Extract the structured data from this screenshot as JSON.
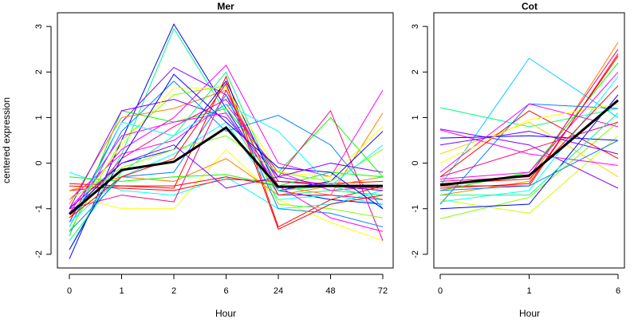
{
  "chart_data": [
    {
      "type": "line",
      "title": "Mer",
      "xlabel": "Hour",
      "ylabel": "centered expression",
      "x": [
        "0",
        "1",
        "2",
        "6",
        "24",
        "48",
        "72"
      ],
      "yticks": [
        -2,
        -1,
        0,
        1,
        2,
        3
      ],
      "ylim": [
        -2.3,
        3.3
      ],
      "grid": false,
      "mean": {
        "name": "mean",
        "color": "#000000",
        "values": [
          -1.12,
          -0.15,
          0.03,
          0.78,
          -0.52,
          -0.5,
          -0.5
        ]
      },
      "series": [
        {
          "color": "#0000ff",
          "values": [
            -2.1,
            0.5,
            3.05,
            1.2,
            -0.6,
            -0.8,
            -0.9
          ]
        },
        {
          "color": "#00ff80",
          "values": [
            -1.9,
            0.2,
            2.95,
            1.1,
            -0.7,
            -0.6,
            -0.7
          ]
        },
        {
          "color": "#8000ff",
          "values": [
            -1.3,
            0.9,
            2.1,
            1.5,
            -0.4,
            -0.5,
            -0.6
          ]
        },
        {
          "color": "#ff00ff",
          "values": [
            -1.0,
            0.3,
            1.0,
            2.15,
            0.0,
            -0.3,
            1.6
          ]
        },
        {
          "color": "#ff0000",
          "values": [
            -0.6,
            -0.5,
            -0.55,
            1.9,
            -1.4,
            -0.8,
            -0.5
          ]
        },
        {
          "color": "#ffff00",
          "values": [
            -0.7,
            -1.0,
            -1.0,
            0.3,
            -0.8,
            -1.3,
            -1.7
          ]
        },
        {
          "color": "#00ffff",
          "values": [
            -0.2,
            -0.6,
            -0.7,
            -0.3,
            -1.0,
            -0.9,
            -0.6
          ]
        },
        {
          "color": "#00ff00",
          "values": [
            -1.6,
            1.15,
            0.9,
            1.2,
            -0.2,
            1.0,
            -0.3
          ]
        },
        {
          "color": "#ff8000",
          "values": [
            -0.9,
            1.0,
            1.2,
            1.6,
            -0.5,
            -0.7,
            1.1
          ]
        },
        {
          "color": "#0080ff",
          "values": [
            -1.4,
            0.7,
            1.8,
            0.7,
            1.05,
            0.4,
            -1.0
          ]
        },
        {
          "color": "#ff0080",
          "values": [
            -1.2,
            0.1,
            0.8,
            1.4,
            -0.3,
            1.15,
            -1.7
          ]
        },
        {
          "color": "#80ff00",
          "values": [
            -1.5,
            0.5,
            1.5,
            1.7,
            -0.9,
            -1.0,
            -1.2
          ]
        },
        {
          "color": "#0000ff",
          "values": [
            -1.1,
            0.0,
            0.3,
            1.8,
            -0.6,
            -0.4,
            0.7
          ]
        },
        {
          "color": "#ff00ff",
          "values": [
            -0.8,
            0.2,
            0.5,
            1.3,
            -0.2,
            -0.6,
            -0.5
          ]
        },
        {
          "color": "#ff0000",
          "values": [
            -0.5,
            -0.55,
            -0.6,
            -0.35,
            -0.4,
            -0.45,
            -0.4
          ]
        },
        {
          "color": "#ff0000",
          "values": [
            -0.45,
            -0.5,
            -0.5,
            -0.3,
            -0.5,
            -0.5,
            -0.55
          ]
        },
        {
          "color": "#00ffff",
          "values": [
            -1.3,
            -0.3,
            0.2,
            0.9,
            -0.8,
            -0.7,
            -0.9
          ]
        },
        {
          "color": "#8000ff",
          "values": [
            -1.0,
            1.15,
            1.4,
            1.0,
            -0.3,
            -0.5,
            -0.6
          ]
        },
        {
          "color": "#00ff80",
          "values": [
            -1.7,
            -0.2,
            0.6,
            2.0,
            -0.6,
            -0.5,
            -0.8
          ]
        },
        {
          "color": "#ffff00",
          "values": [
            -1.2,
            0.4,
            1.65,
            1.65,
            -0.2,
            -0.3,
            0.8
          ]
        },
        {
          "color": "#0080ff",
          "values": [
            -1.5,
            -0.3,
            -0.2,
            1.5,
            -1.0,
            -1.1,
            -1.4
          ]
        },
        {
          "color": "#ff8000",
          "values": [
            -0.6,
            -0.3,
            -0.4,
            0.1,
            -0.7,
            -0.5,
            -0.3
          ]
        },
        {
          "color": "#ff0080",
          "values": [
            -1.0,
            -0.7,
            -0.85,
            1.6,
            -0.7,
            -0.7,
            -0.8
          ]
        },
        {
          "color": "#00ff00",
          "values": [
            -0.3,
            -0.4,
            -0.3,
            -0.25,
            -0.5,
            -0.2,
            -0.3
          ]
        },
        {
          "color": "#0000ff",
          "values": [
            -1.9,
            0.1,
            1.95,
            0.9,
            -0.1,
            -0.2,
            -1.0
          ]
        },
        {
          "color": "#ff00ff",
          "values": [
            -1.1,
            0.6,
            0.9,
            1.1,
            -0.5,
            -1.2,
            -1.5
          ]
        },
        {
          "color": "#80ff00",
          "values": [
            -0.8,
            -0.1,
            0.3,
            0.6,
            -0.2,
            -0.4,
            0.3
          ]
        },
        {
          "color": "#00ffff",
          "values": [
            -1.4,
            0.9,
            0.6,
            1.3,
            0.7,
            -0.5,
            0.4
          ]
        },
        {
          "color": "#ff0000",
          "values": [
            -1.2,
            -0.3,
            0.1,
            1.75,
            -1.45,
            -0.9,
            -0.7
          ]
        },
        {
          "color": "#8000ff",
          "values": [
            -1.0,
            0.0,
            0.4,
            -0.55,
            -0.3,
            0.0,
            -0.2
          ]
        }
      ]
    },
    {
      "type": "line",
      "title": "Cot",
      "xlabel": "Hour",
      "ylabel": "",
      "x": [
        "0",
        "1",
        "6"
      ],
      "yticks": [
        -2,
        -1,
        0,
        1,
        2,
        3
      ],
      "ylim": [
        -2.3,
        3.3
      ],
      "grid": false,
      "mean": {
        "name": "mean",
        "color": "#000000",
        "values": [
          -0.48,
          -0.27,
          1.38
        ]
      },
      "series": [
        {
          "color": "#00ccff",
          "values": [
            -0.5,
            2.3,
            1.0
          ]
        },
        {
          "color": "#00ff80",
          "values": [
            1.22,
            0.8,
            1.2
          ]
        },
        {
          "color": "#80ff00",
          "values": [
            -1.22,
            -0.75,
            0.9
          ]
        },
        {
          "color": "#ccff00",
          "values": [
            -0.8,
            -1.1,
            0.6
          ]
        },
        {
          "color": "#8000ff",
          "values": [
            0.75,
            0.4,
            -0.55
          ]
        },
        {
          "color": "#ffcc00",
          "values": [
            0.2,
            0.9,
            -0.3
          ]
        },
        {
          "color": "#ff00ff",
          "values": [
            0.73,
            0.2,
            -0.05
          ]
        },
        {
          "color": "#ff0000",
          "values": [
            -0.3,
            1.15,
            0.1
          ]
        },
        {
          "color": "#ff8000",
          "values": [
            -0.7,
            -0.4,
            2.65
          ]
        },
        {
          "color": "#ff0080",
          "values": [
            -0.4,
            -0.3,
            2.5
          ]
        },
        {
          "color": "#ff0000",
          "values": [
            -0.5,
            -0.5,
            2.4
          ]
        },
        {
          "color": "#00ff00",
          "values": [
            -0.6,
            -0.2,
            2.2
          ]
        },
        {
          "color": "#0000ff",
          "values": [
            0.55,
            0.6,
            0.5
          ]
        },
        {
          "color": "#0080ff",
          "values": [
            -0.9,
            1.3,
            1.2
          ]
        },
        {
          "color": "#ff00ff",
          "values": [
            -0.2,
            1.3,
            0.8
          ]
        },
        {
          "color": "#00ffff",
          "values": [
            -0.85,
            -0.6,
            1.9
          ]
        },
        {
          "color": "#0000ff",
          "values": [
            -1.0,
            -0.9,
            1.5
          ]
        },
        {
          "color": "#ff0000",
          "values": [
            -0.45,
            -0.35,
            1.7
          ]
        },
        {
          "color": "#ff0080",
          "values": [
            -0.3,
            0.3,
            0.9
          ]
        },
        {
          "color": "#8000ff",
          "values": [
            0.4,
            0.7,
            0.2
          ]
        },
        {
          "color": "#00ff80",
          "values": [
            -0.7,
            -0.7,
            1.1
          ]
        },
        {
          "color": "#ffff00",
          "values": [
            0.0,
            0.95,
            1.3
          ]
        },
        {
          "color": "#0080ff",
          "values": [
            -0.6,
            -0.5,
            0.5
          ]
        },
        {
          "color": "#ff0000",
          "values": [
            -0.55,
            -0.45,
            2.35
          ]
        },
        {
          "color": "#ff00ff",
          "values": [
            -0.35,
            -0.2,
            2.0
          ]
        }
      ]
    }
  ]
}
